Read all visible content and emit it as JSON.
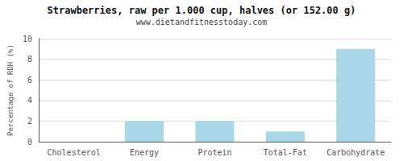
{
  "chart_data": {
    "type": "bar",
    "title": "Strawberries, raw per 1.000 cup, halves (or 152.00 g)",
    "subtitle": "www.dietandfitnesstoday.com",
    "categories": [
      "Cholesterol",
      "Energy",
      "Protein",
      "Total-Fat",
      "Carbohydrate"
    ],
    "values": [
      0,
      2,
      2,
      1,
      9
    ],
    "color": "#a8d8e8",
    "ylabel": "Percentage of RDH (%)",
    "ylim": [
      0,
      10
    ],
    "yticks": [
      0,
      2,
      4,
      6,
      8,
      10
    ],
    "grid": true
  }
}
